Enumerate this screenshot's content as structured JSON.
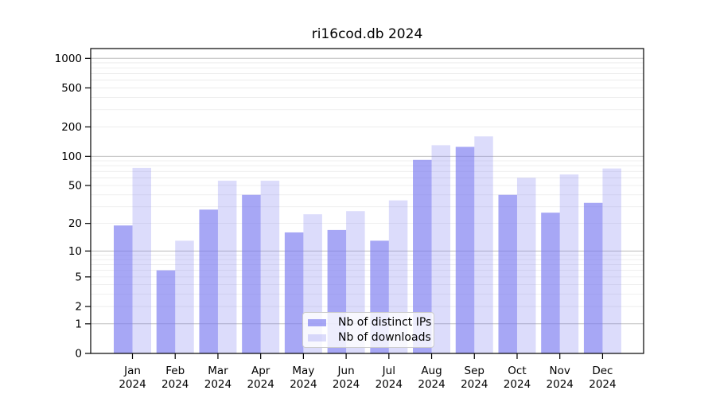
{
  "chart_data": {
    "type": "bar",
    "title": "ri16cod.db 2024",
    "categories": [
      "Jan",
      "Feb",
      "Mar",
      "Apr",
      "May",
      "Jun",
      "Jul",
      "Aug",
      "Sep",
      "Oct",
      "Nov",
      "Dec"
    ],
    "x_tick_year": "2024",
    "series": [
      {
        "name": "Nb of distinct IPs",
        "color": "rgba(120,120,240,0.65)",
        "values": [
          19,
          6,
          28,
          40,
          16,
          17,
          13,
          92,
          125,
          40,
          26,
          33
        ]
      },
      {
        "name": "Nb of downloads",
        "color": "rgba(120,120,240,0.26)",
        "values": [
          76,
          13,
          56,
          56,
          25,
          27,
          35,
          130,
          160,
          60,
          65,
          75
        ]
      }
    ],
    "xlabel": "",
    "ylabel": "",
    "y_scale": "log1p",
    "y_ticks": [
      0,
      1,
      2,
      5,
      10,
      20,
      50,
      100,
      200,
      500,
      1000
    ],
    "ylim": [
      0,
      1258
    ],
    "grid": true,
    "legend_position": "lower-center",
    "colors": {
      "major_grid": "#bdbdbd",
      "minor_grid": "#eaeaea",
      "spine": "#000000",
      "text": "#000000"
    }
  }
}
